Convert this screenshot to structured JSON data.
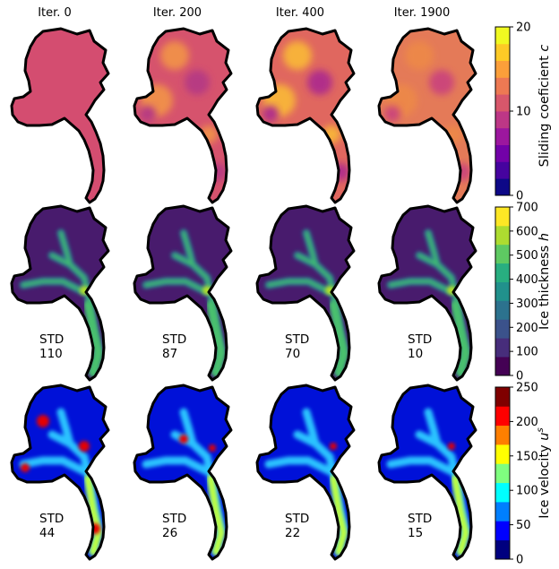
{
  "columns": [
    "Iter. 0",
    "Iter. 200",
    "Iter. 400",
    "Iter. 1900"
  ],
  "rows": [
    {
      "variable": "sliding",
      "colorbar": {
        "label": "Sliding coeficient c",
        "label_main": "Sliding coeficient ",
        "label_symbol": "c",
        "ticks": [
          "0",
          "10",
          "20"
        ],
        "range": [
          0,
          20
        ],
        "colormap": "plasma",
        "colors": [
          "#0d0887",
          "#46039f",
          "#7201a8",
          "#9c179e",
          "#bd3786",
          "#d8576b",
          "#ed7953",
          "#fb9f3a",
          "#fdca26",
          "#f0f921"
        ]
      },
      "std_label": "",
      "std_values": []
    },
    {
      "variable": "thickness",
      "colorbar": {
        "label": "Ice thickness h",
        "label_main": "Ice thickness ",
        "label_symbol": "h",
        "ticks": [
          "0",
          "100",
          "200",
          "300",
          "400",
          "500",
          "600",
          "700"
        ],
        "range": [
          0,
          700
        ],
        "colormap": "viridis",
        "colors": [
          "#440154",
          "#472d7b",
          "#3b528b",
          "#2c728e",
          "#21918c",
          "#28ae80",
          "#5ec962",
          "#addc30",
          "#fde725"
        ]
      },
      "std_label": "STD",
      "std_values": [
        "110",
        "87",
        "70",
        "10"
      ]
    },
    {
      "variable": "velocity",
      "colorbar": {
        "label": "Ice velocity u^s",
        "label_main": "Ice velocity ",
        "label_symbol": "u",
        "label_superscript": "s",
        "ticks": [
          "0",
          "50",
          "100",
          "150",
          "200",
          "250"
        ],
        "range": [
          0,
          250
        ],
        "colormap": "jet",
        "colors": [
          "#00007f",
          "#0000ff",
          "#007fff",
          "#00ffff",
          "#7fff7f",
          "#ffff00",
          "#ff7f00",
          "#ff0000",
          "#7f0000"
        ]
      },
      "std_label": "STD",
      "std_values": [
        "44",
        "26",
        "22",
        "15"
      ]
    }
  ]
}
